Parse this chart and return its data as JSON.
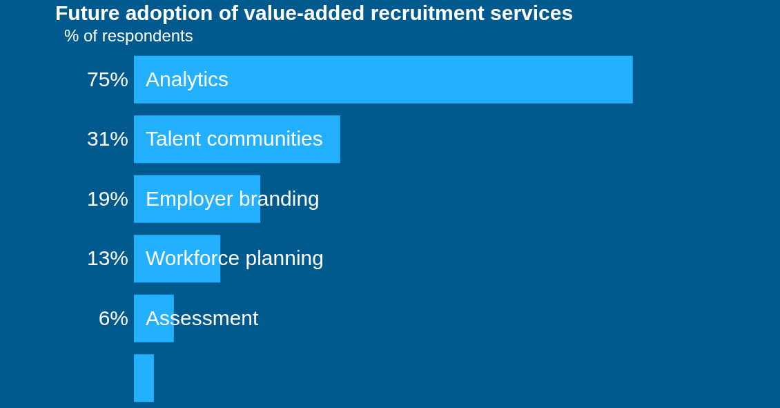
{
  "chart_data": {
    "type": "bar",
    "orientation": "horizontal",
    "title": "Future adoption of value-added recruitment services",
    "subtitle": "% of respondents",
    "categories": [
      "Analytics",
      "Talent communities",
      "Employer branding",
      "Workforce planning",
      "Assessment",
      null
    ],
    "values": [
      75,
      31,
      19,
      13,
      6,
      3
    ],
    "value_labels": [
      "75%",
      "31%",
      "19%",
      "13%",
      "6%",
      null
    ],
    "color": "#22b0ff"
  }
}
